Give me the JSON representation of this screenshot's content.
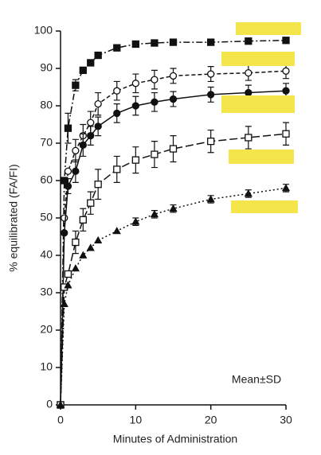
{
  "chart_data": {
    "type": "line",
    "xlabel": "Minutes of Administration",
    "ylabel": "% equilibrated (FA/FI)",
    "annotation": "Mean±SD",
    "x": [
      0,
      0.5,
      1,
      2,
      3,
      4,
      5,
      7.5,
      10,
      12.5,
      15,
      20,
      25,
      30
    ],
    "series": [
      {
        "color": "#111111",
        "marker": "square-filled",
        "dash": "8 3 2 3",
        "values": [
          0,
          60,
          74,
          85.5,
          89.5,
          91.5,
          93.5,
          95.5,
          96.5,
          96.8,
          97,
          97,
          97.3,
          97.5
        ],
        "errors": [
          null,
          null,
          4,
          1.5,
          null,
          null,
          null,
          null,
          null,
          null,
          null,
          null,
          null,
          null
        ]
      },
      {
        "color": "#111111",
        "marker": "circle-open",
        "dash": "5 3",
        "values": [
          0,
          50,
          62.5,
          68,
          72,
          75.5,
          80.5,
          84,
          86,
          87,
          88,
          88.5,
          88.8,
          89.3
        ],
        "errors": [
          null,
          null,
          null,
          3,
          3,
          3,
          3,
          2.5,
          2.5,
          2.5,
          2,
          2,
          2,
          2
        ]
      },
      {
        "color": "#111111",
        "marker": "circle-filled",
        "dash": "",
        "values": [
          0,
          46,
          58.5,
          62.5,
          69.5,
          72,
          74.5,
          78,
          80,
          81,
          81.8,
          83,
          83.5,
          84
        ],
        "errors": [
          null,
          null,
          2,
          3,
          3,
          2.5,
          2.5,
          2.5,
          2.5,
          2.5,
          2,
          2,
          2,
          2
        ]
      },
      {
        "color": "#111111",
        "marker": "square-open",
        "dash": "10 4",
        "values": [
          0,
          31.5,
          35,
          43.5,
          49.5,
          54,
          59,
          63,
          65.5,
          67,
          68.5,
          70.5,
          71.5,
          72.5
        ],
        "errors": [
          null,
          null,
          null,
          3,
          3,
          3,
          4,
          3.5,
          3.5,
          3.5,
          3.5,
          3,
          3,
          3
        ]
      },
      {
        "color": "#111111",
        "marker": "triangle",
        "dash": "2 3",
        "values": [
          0,
          27,
          32,
          36.5,
          40,
          42,
          44,
          46.5,
          49,
          51,
          52.5,
          55,
          56.5,
          58
        ],
        "errors": [
          null,
          null,
          null,
          null,
          null,
          null,
          null,
          null,
          1,
          1,
          1,
          1,
          1,
          1
        ]
      }
    ],
    "xlim": [
      0,
      30
    ],
    "xticks": [
      0,
      10,
      20,
      30
    ],
    "ylim": [
      0,
      100
    ],
    "yticks": [
      0,
      10,
      20,
      30,
      40,
      50,
      60,
      70,
      80,
      90,
      100
    ]
  }
}
